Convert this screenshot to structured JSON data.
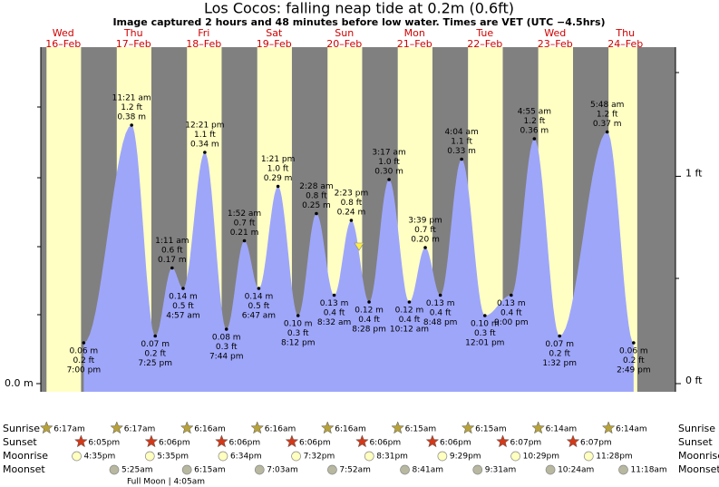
{
  "header": {
    "title": "Los Cocos: falling  neap tide at 0.2m (0.6ft)",
    "subtitle": "Image captured 2 hours and 48 minutes before low water. Times are VET (UTC −4.5hrs)"
  },
  "left_axis": [
    {
      "value": 0,
      "label": "0.0 m"
    }
  ],
  "right_axis": [
    {
      "value": 1,
      "label": "1 ft"
    },
    {
      "value": 0,
      "label": "0 ft"
    }
  ],
  "rows": {
    "sunrise": "Sunrise",
    "sunset": "Sunset",
    "moonrise": "Moonrise",
    "moonset": "Moonset"
  },
  "days": [
    {
      "weekday": "Wed",
      "date": "16–Feb",
      "sunrise": "6:17am",
      "sunset": "6:05pm",
      "moonrise": "4:35pm",
      "tides": [
        {
          "time": "7:00 pm",
          "ft": "0.2 ft",
          "m": {
            "value": 0.06,
            "label": "0.06 m"
          }
        }
      ]
    },
    {
      "weekday": "Thu",
      "date": "17–Feb",
      "sunrise": "6:17am",
      "sunset": "6:06pm",
      "moonrise": "5:35pm",
      "moonset": "5:25am",
      "tides": [
        {
          "time": "11:21 am",
          "ft": "1.2 ft",
          "m": {
            "value": 0.38,
            "label": "0.38 m"
          }
        },
        {
          "time": "7:25 pm",
          "ft": "0.2 ft",
          "m": {
            "value": 0.07,
            "label": "0.07 m"
          }
        }
      ]
    },
    {
      "weekday": "Fri",
      "date": "18–Feb",
      "sunrise": "6:16am",
      "sunset": "6:06pm",
      "moonrise": "6:34pm",
      "moonset": "6:15am",
      "tides": [
        {
          "time": "1:11 am",
          "ft": "0.6 ft",
          "m": {
            "value": 0.17,
            "label": "0.17 m"
          }
        },
        {
          "time": "4:57 am",
          "ft": "0.5 ft",
          "m": {
            "value": 0.14,
            "label": "0.14 m"
          }
        },
        {
          "time": "12:21 pm",
          "ft": "1.1 ft",
          "m": {
            "value": 0.34,
            "label": "0.34 m"
          }
        },
        {
          "time": "7:44 pm",
          "ft": "0.3 ft",
          "m": {
            "value": 0.08,
            "label": "0.08 m"
          }
        }
      ]
    },
    {
      "weekday": "Sat",
      "date": "19–Feb",
      "sunrise": "6:16am",
      "sunset": "6:06pm",
      "moonrise": "7:32pm",
      "moonset": "7:03am",
      "tides": [
        {
          "time": "1:52 am",
          "ft": "0.7 ft",
          "m": {
            "value": 0.21,
            "label": "0.21 m"
          }
        },
        {
          "time": "6:47 am",
          "ft": "0.5 ft",
          "m": {
            "value": 0.14,
            "label": "0.14 m"
          }
        },
        {
          "time": "1:21 pm",
          "ft": "1.0 ft",
          "m": {
            "value": 0.29,
            "label": "0.29 m"
          }
        },
        {
          "time": "8:12 pm",
          "ft": "0.3 ft",
          "m": {
            "value": 0.1,
            "label": "0.10 m"
          }
        }
      ]
    },
    {
      "weekday": "Sun",
      "date": "20–Feb",
      "sunrise": "6:16am",
      "sunset": "6:06pm",
      "moonrise": "8:31pm",
      "moonset": "7:52am",
      "tides": [
        {
          "time": "2:28 am",
          "ft": "0.8 ft",
          "m": {
            "value": 0.25,
            "label": "0.25 m"
          }
        },
        {
          "time": "8:32 am",
          "ft": "0.4 ft",
          "m": {
            "value": 0.13,
            "label": "0.13 m"
          }
        },
        {
          "time": "2:23 pm",
          "ft": "0.8 ft",
          "m": {
            "value": 0.24,
            "label": "0.24 m"
          }
        },
        {
          "time": "8:28 pm",
          "ft": "0.4 ft",
          "m": {
            "value": 0.12,
            "label": "0.12 m"
          }
        }
      ]
    },
    {
      "weekday": "Mon",
      "date": "21–Feb",
      "sunrise": "6:15am",
      "sunset": "6:06pm",
      "moonrise": "9:29pm",
      "moonset": "8:41am",
      "tides": [
        {
          "time": "3:17 am",
          "ft": "1.0 ft",
          "m": {
            "value": 0.3,
            "label": "0.30 m"
          }
        },
        {
          "time": "10:12 am",
          "ft": "0.4 ft",
          "m": {
            "value": 0.12,
            "label": "0.12 m"
          }
        },
        {
          "time": "3:39 pm",
          "ft": "0.7 ft",
          "m": {
            "value": 0.2,
            "label": "0.20 m"
          }
        },
        {
          "time": "8:48 pm",
          "ft": "0.4 ft",
          "m": {
            "value": 0.13,
            "label": "0.13 m"
          }
        }
      ]
    },
    {
      "weekday": "Tue",
      "date": "22–Feb",
      "sunrise": "6:15am",
      "sunset": "6:07pm",
      "moonrise": "10:29pm",
      "moonset": "9:31am",
      "tides": [
        {
          "time": "4:04 am",
          "ft": "1.1 ft",
          "m": {
            "value": 0.33,
            "label": "0.33 m"
          }
        },
        {
          "time": "12:01 pm",
          "ft": "0.3 ft",
          "m": {
            "value": 0.1,
            "label": "0.10 m"
          }
        },
        {
          "time": "9:00 pm",
          "ft": "0.4 ft",
          "m": {
            "value": 0.13,
            "label": "0.13 m"
          }
        }
      ]
    },
    {
      "weekday": "Wed",
      "date": "23–Feb",
      "sunrise": "6:14am",
      "sunset": "6:07pm",
      "moonrise": "11:28pm",
      "moonset": "10:24am",
      "tides": [
        {
          "time": "4:55 am",
          "ft": "1.2 ft",
          "m": {
            "value": 0.36,
            "label": "0.36 m"
          }
        },
        {
          "time": "1:32 pm",
          "ft": "0.2 ft",
          "m": {
            "value": 0.07,
            "label": "0.07 m"
          }
        }
      ]
    },
    {
      "weekday": "Thu",
      "date": "24–Feb",
      "sunrise": "6:14am",
      "moonset": "11:18am",
      "tides": [
        {
          "time": "5:48 am",
          "ft": "1.2 ft",
          "m": {
            "value": 0.37,
            "label": "0.37 m"
          }
        },
        {
          "time": "2:49 pm",
          "ft": "0.2 ft",
          "m": {
            "value": 0.06,
            "label": "0.06 m"
          }
        }
      ]
    }
  ],
  "full_moon": "Full Moon | 4:05am"
}
